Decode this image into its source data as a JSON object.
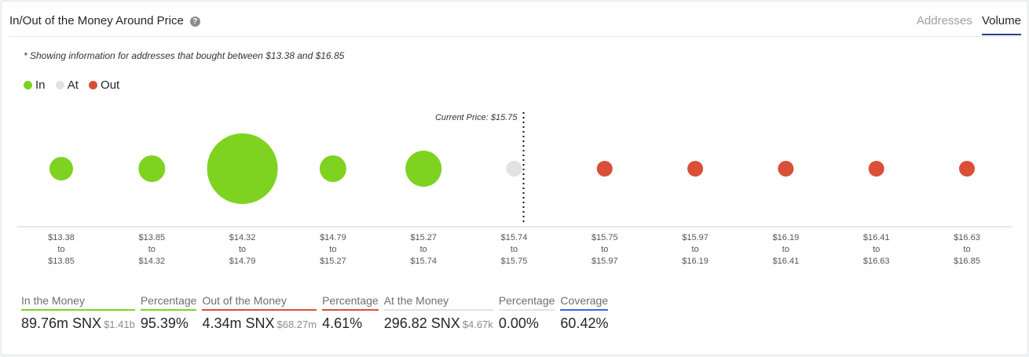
{
  "header": {
    "title": "In/Out of the Money Around Price",
    "help_icon": "question-circle-icon",
    "tabs": [
      {
        "label": "Addresses",
        "active": false
      },
      {
        "label": "Volume",
        "active": true
      }
    ]
  },
  "note": "* Showing information for addresses that bought between $13.38 and $16.85",
  "colors": {
    "in": "#7ed321",
    "at": "#e2e2e2",
    "out": "#d94f38",
    "coverage": "#2f6be6"
  },
  "chart_data": {
    "type": "bubble",
    "legend": [
      {
        "name": "In",
        "color": "#7ed321"
      },
      {
        "name": "At",
        "color": "#e2e2e2"
      },
      {
        "name": "Out",
        "color": "#d94f38"
      }
    ],
    "current_price_label": "Current Price: $15.75",
    "categories": [
      {
        "from": "$13.38",
        "to": "$13.85",
        "status": "in",
        "volume_snx": 6020000
      },
      {
        "from": "$13.85",
        "to": "$14.32",
        "status": "in",
        "volume_snx": 7730000
      },
      {
        "from": "$14.32",
        "to": "$14.79",
        "status": "in",
        "volume_snx": 54150000
      },
      {
        "from": "$14.79",
        "to": "$15.27",
        "status": "in",
        "volume_snx": 7730000
      },
      {
        "from": "$15.27",
        "to": "$15.74",
        "status": "in",
        "volume_snx": 14150000
      },
      {
        "from": "$15.74",
        "to": "$15.75",
        "status": "at",
        "volume_snx": 296.82
      },
      {
        "from": "$15.75",
        "to": "$15.97",
        "status": "out",
        "volume_snx": 640000
      },
      {
        "from": "$15.97",
        "to": "$16.19",
        "status": "out",
        "volume_snx": 1440000
      },
      {
        "from": "$16.19",
        "to": "$16.41",
        "status": "out",
        "volume_snx": 750000
      },
      {
        "from": "$16.41",
        "to": "$16.63",
        "status": "out",
        "volume_snx": 750000
      },
      {
        "from": "$16.63",
        "to": "$16.85",
        "status": "out",
        "volume_snx": 750000
      }
    ],
    "to_word": "to"
  },
  "stats": [
    {
      "label": "In the Money",
      "value": "89.76m SNX",
      "sub": "$1.41b",
      "color": "#7ed321"
    },
    {
      "label": "Percentage",
      "value": "95.39%",
      "sub": "",
      "color": "#7ed321"
    },
    {
      "label": "Out of the Money",
      "value": "4.34m SNX",
      "sub": "$68.27m",
      "color": "#d94f38"
    },
    {
      "label": "Percentage",
      "value": "4.61%",
      "sub": "",
      "color": "#d94f38"
    },
    {
      "label": "At the Money",
      "value": "296.82 SNX",
      "sub": "$4.67k",
      "color": "#e2e2e2"
    },
    {
      "label": "Percentage",
      "value": "0.00%",
      "sub": "",
      "color": "#e2e2e2"
    },
    {
      "label": "Coverage",
      "value": "60.42%",
      "sub": "",
      "color": "#2f6be6"
    }
  ]
}
